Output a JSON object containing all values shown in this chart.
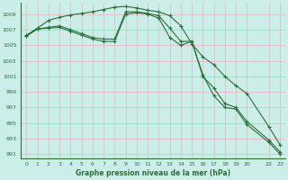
{
  "title": "Graphe pression niveau de la mer (hPa)",
  "bg_color": "#cceee8",
  "grid_color": "#dbb8b8",
  "line_color": "#2d6e3a",
  "ylim": [
    990.5,
    1010.5
  ],
  "yticks": [
    991,
    993,
    995,
    997,
    999,
    1001,
    1003,
    1005,
    1007,
    1009
  ],
  "x_positions": [
    0,
    1,
    2,
    3,
    4,
    5,
    6,
    7,
    8,
    9,
    10,
    11,
    12,
    13,
    14,
    15,
    16,
    17,
    18,
    19,
    20,
    22,
    23
  ],
  "x_labels": [
    "0",
    "1",
    "2",
    "3",
    "4",
    "5",
    "6",
    "7",
    "8",
    "9",
    "10",
    "11",
    "12",
    "13",
    "14",
    "15",
    "16",
    "17",
    "18",
    "19",
    "20",
    "22",
    "23"
  ],
  "series": [
    [
      1006.2,
      1007.1,
      1007.2,
      1007.3,
      1006.8,
      1006.3,
      1005.8,
      1005.5,
      1005.5,
      1009.0,
      1009.2,
      1009.0,
      1008.5,
      1006.0,
      1005.0,
      1005.5,
      1001.0,
      999.5,
      997.5,
      997.0,
      995.2,
      992.8,
      991.3
    ],
    [
      1006.3,
      1007.2,
      1008.2,
      1008.6,
      1008.9,
      1009.1,
      1009.3,
      1009.6,
      1009.9,
      1010.0,
      1009.8,
      1009.5,
      1009.3,
      1008.8,
      1007.5,
      1005.2,
      1003.5,
      1002.5,
      1001.0,
      999.8,
      998.8,
      994.5,
      992.2
    ],
    [
      1006.2,
      1007.1,
      1007.3,
      1007.5,
      1007.0,
      1006.5,
      1006.0,
      1005.8,
      1005.8,
      1009.3,
      1009.3,
      1009.1,
      1008.8,
      1007.2,
      1005.5,
      1005.5,
      1001.2,
      998.5,
      997.0,
      996.8,
      994.8,
      992.5,
      991.0
    ]
  ]
}
